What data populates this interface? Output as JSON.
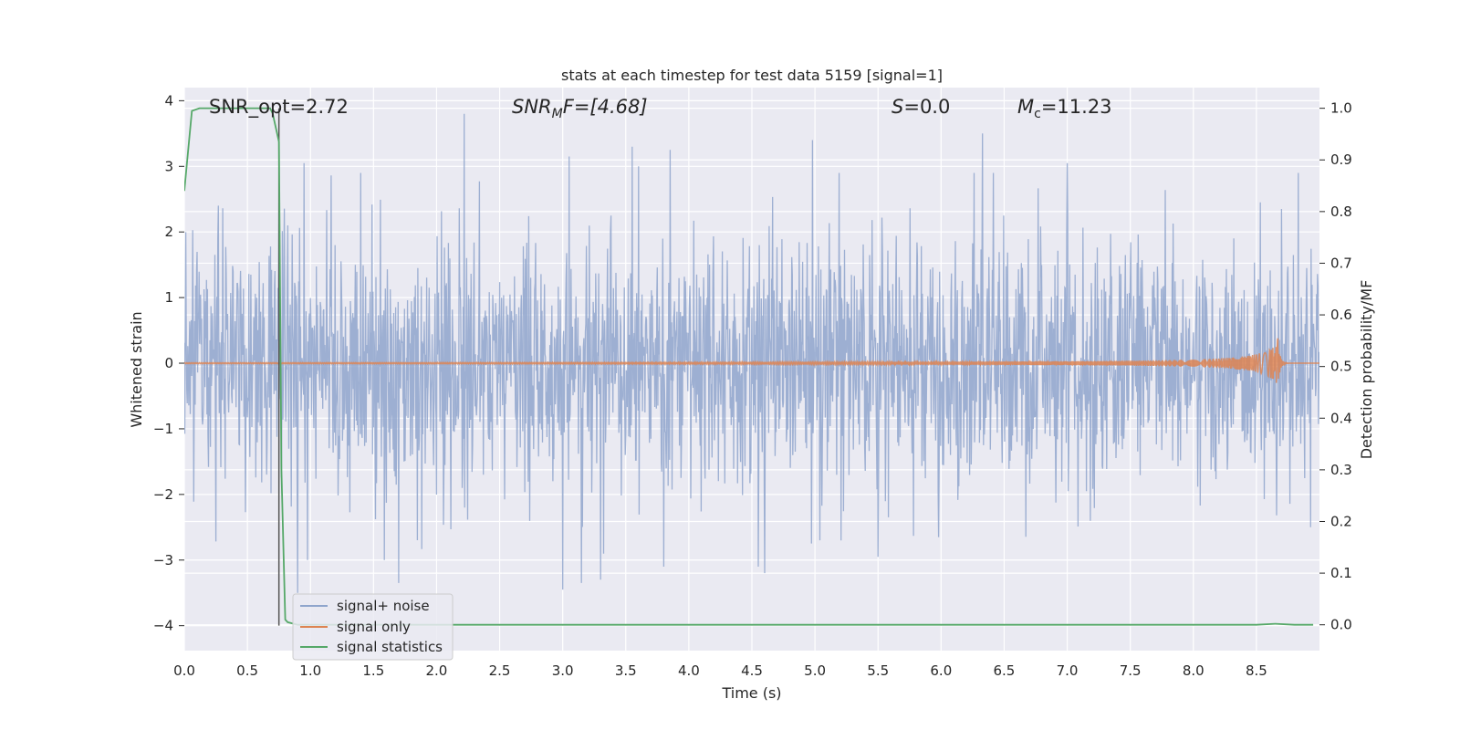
{
  "chart_data": {
    "type": "line",
    "title": "stats at each timestep for test data 5159 [signal=1]",
    "xlabel": "Time (s)",
    "ylabel_left": "Whitened strain",
    "ylabel_right": "Detection probability/MF",
    "xlim": [
      0.0,
      9.0
    ],
    "ylim_left": [
      -4.38,
      4.2
    ],
    "ylim_right": [
      -0.05,
      1.04
    ],
    "x_ticks": [
      "0.0",
      "0.5",
      "1.0",
      "1.5",
      "2.0",
      "2.5",
      "3.0",
      "3.5",
      "4.0",
      "4.5",
      "5.0",
      "5.5",
      "6.0",
      "6.5",
      "7.0",
      "7.5",
      "8.0",
      "8.5"
    ],
    "x_tick_values": [
      0.0,
      0.5,
      1.0,
      1.5,
      2.0,
      2.5,
      3.0,
      3.5,
      4.0,
      4.5,
      5.0,
      5.5,
      6.0,
      6.5,
      7.0,
      7.5,
      8.0,
      8.5
    ],
    "y_left_ticks": [
      "−4",
      "−3",
      "−2",
      "−1",
      "0",
      "1",
      "2",
      "3",
      "4"
    ],
    "y_left_tick_values": [
      -4,
      -3,
      -2,
      -1,
      0,
      1,
      2,
      3,
      4
    ],
    "y_right_ticks": [
      "0.0",
      "0.1",
      "0.2",
      "0.3",
      "0.4",
      "0.5",
      "0.6",
      "0.7",
      "0.8",
      "0.9",
      "1.0"
    ],
    "y_right_tick_values": [
      0.0,
      0.1,
      0.2,
      0.3,
      0.4,
      0.5,
      0.6,
      0.7,
      0.8,
      0.9,
      1.0
    ],
    "grid": true,
    "legend_position": "lower-left",
    "annotations": {
      "snr_opt": "SNR_opt=2.72",
      "snr_mf_main": "SNR",
      "snr_mf_sub": "M",
      "snr_mf_rest": "F=[4.68]",
      "s_main": "S",
      "s_rest": "=0.0",
      "mc_main": "M",
      "mc_sub": "c",
      "mc_rest": "=11.23"
    },
    "vertical_marker_x": 0.75,
    "series": [
      {
        "name": "signal+ noise",
        "axis": "left",
        "color": "#8fa5cc",
        "description_type": "noise",
        "sample_rate_hz": 256,
        "duration_s": 9.0,
        "std": 0.95,
        "notable_peaks": [
          [
            0.27,
            2.4
          ],
          [
            0.75,
            2.65
          ],
          [
            0.9,
            -3.5
          ],
          [
            0.95,
            3.05
          ],
          [
            1.4,
            2.9
          ],
          [
            1.7,
            -3.35
          ],
          [
            2.22,
            3.8
          ],
          [
            3.0,
            -3.45
          ],
          [
            3.05,
            3.15
          ],
          [
            3.15,
            -3.35
          ],
          [
            3.3,
            -3.3
          ],
          [
            3.55,
            3.3
          ],
          [
            3.6,
            3.0
          ],
          [
            3.8,
            -3.1
          ],
          [
            3.85,
            3.25
          ],
          [
            4.55,
            -3.1
          ],
          [
            4.6,
            -3.2
          ],
          [
            4.98,
            3.4
          ],
          [
            5.5,
            -2.95
          ],
          [
            5.98,
            -2.65
          ],
          [
            6.33,
            3.5
          ],
          [
            7.0,
            3.05
          ],
          [
            8.53,
            2.45
          ],
          [
            8.7,
            2.35
          ],
          [
            8.93,
            -2.5
          ]
        ]
      },
      {
        "name": "signal only",
        "axis": "left",
        "color": "#dd8452",
        "description_type": "chirp",
        "peak_time_s": 8.67,
        "peak_amplitude": 0.38,
        "end_time_s": 9.0
      },
      {
        "name": "signal statistics",
        "axis": "right",
        "color": "#55a868",
        "x": [
          0.0,
          0.06,
          0.12,
          0.2,
          0.3,
          0.4,
          0.5,
          0.6,
          0.68,
          0.7,
          0.75,
          0.77,
          0.8,
          0.82,
          0.9,
          1.0,
          2.0,
          3.0,
          4.0,
          5.0,
          6.0,
          7.0,
          8.0,
          8.5,
          8.65,
          8.8,
          8.95
        ],
        "values": [
          0.84,
          0.995,
          1.0,
          1.0,
          1.0,
          1.0,
          1.0,
          1.0,
          1.0,
          0.99,
          0.935,
          0.3,
          0.01,
          0.005,
          0.0,
          0.0,
          0.0,
          0.0,
          0.0,
          0.0,
          0.0,
          0.0,
          0.0,
          0.0,
          0.002,
          0.0,
          0.0
        ]
      }
    ]
  }
}
